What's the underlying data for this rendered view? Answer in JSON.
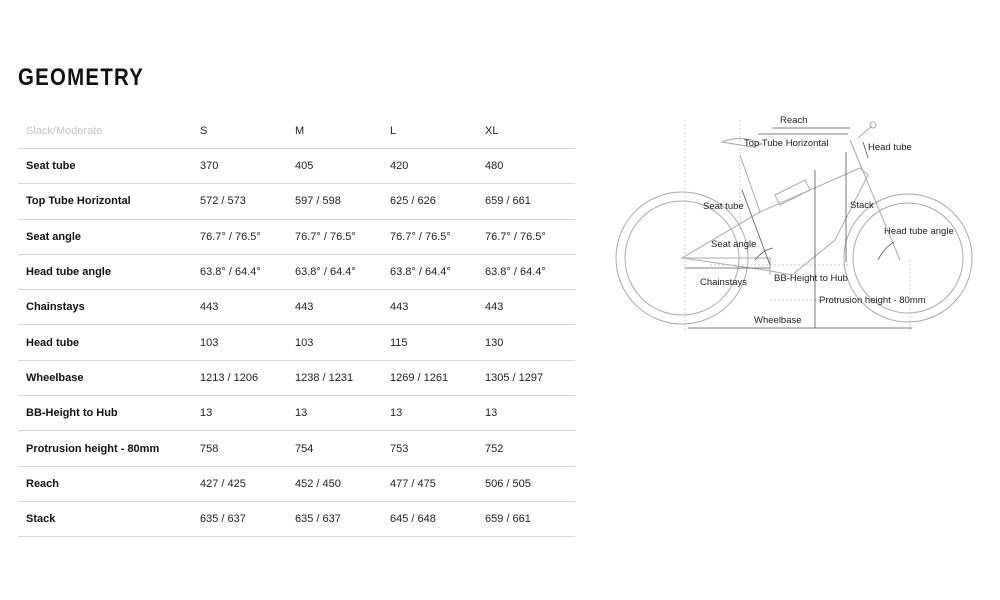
{
  "title": "GEOMETRY",
  "table": {
    "corner_label": "Slack/Moderate",
    "sizes": [
      "S",
      "M",
      "L",
      "XL"
    ],
    "rows": [
      {
        "label": "Seat tube",
        "values": [
          "370",
          "405",
          "420",
          "480"
        ]
      },
      {
        "label": "Top Tube Horizontal",
        "values": [
          "572 / 573",
          "597 / 598",
          "625 / 626",
          "659 / 661"
        ]
      },
      {
        "label": "Seat angle",
        "values": [
          "76.7° / 76.5°",
          "76.7° / 76.5°",
          "76.7° / 76.5°",
          "76.7° / 76.5°"
        ]
      },
      {
        "label": "Head tube angle",
        "values": [
          "63.8° / 64.4°",
          "63.8° / 64.4°",
          "63.8° / 64.4°",
          "63.8° / 64.4°"
        ]
      },
      {
        "label": "Chainstays",
        "values": [
          "443",
          "443",
          "443",
          "443"
        ]
      },
      {
        "label": "Head tube",
        "values": [
          "103",
          "103",
          "115",
          "130"
        ]
      },
      {
        "label": "Wheelbase",
        "values": [
          "1213 / 1206",
          "1238 / 1231",
          "1269 / 1261",
          "1305 / 1297"
        ]
      },
      {
        "label": "BB-Height to Hub",
        "values": [
          "13",
          "13",
          "13",
          "13"
        ]
      },
      {
        "label": "Protrusion height - 80mm",
        "values": [
          "758",
          "754",
          "753",
          "752"
        ]
      },
      {
        "label": "Reach",
        "values": [
          "427 / 425",
          "452 / 450",
          "477 / 475",
          "506 / 505"
        ]
      },
      {
        "label": "Stack",
        "values": [
          "635 / 637",
          "635 / 637",
          "645 / 648",
          "659 / 661"
        ]
      }
    ]
  },
  "diagram": {
    "labels": {
      "reach": "Reach",
      "top_tube": "Top Tube Horizontal",
      "head_tube": "Head tube",
      "seat_tube": "Seat tube",
      "stack": "Stack",
      "head_tube_angle": "Head tube angle",
      "seat_angle": "Seat angle",
      "chainstays": "Chainstays",
      "bb_height": "BB-Height to Hub",
      "protrusion": "Protrusion height - 80mm",
      "wheelbase": "Wheelbase"
    }
  }
}
